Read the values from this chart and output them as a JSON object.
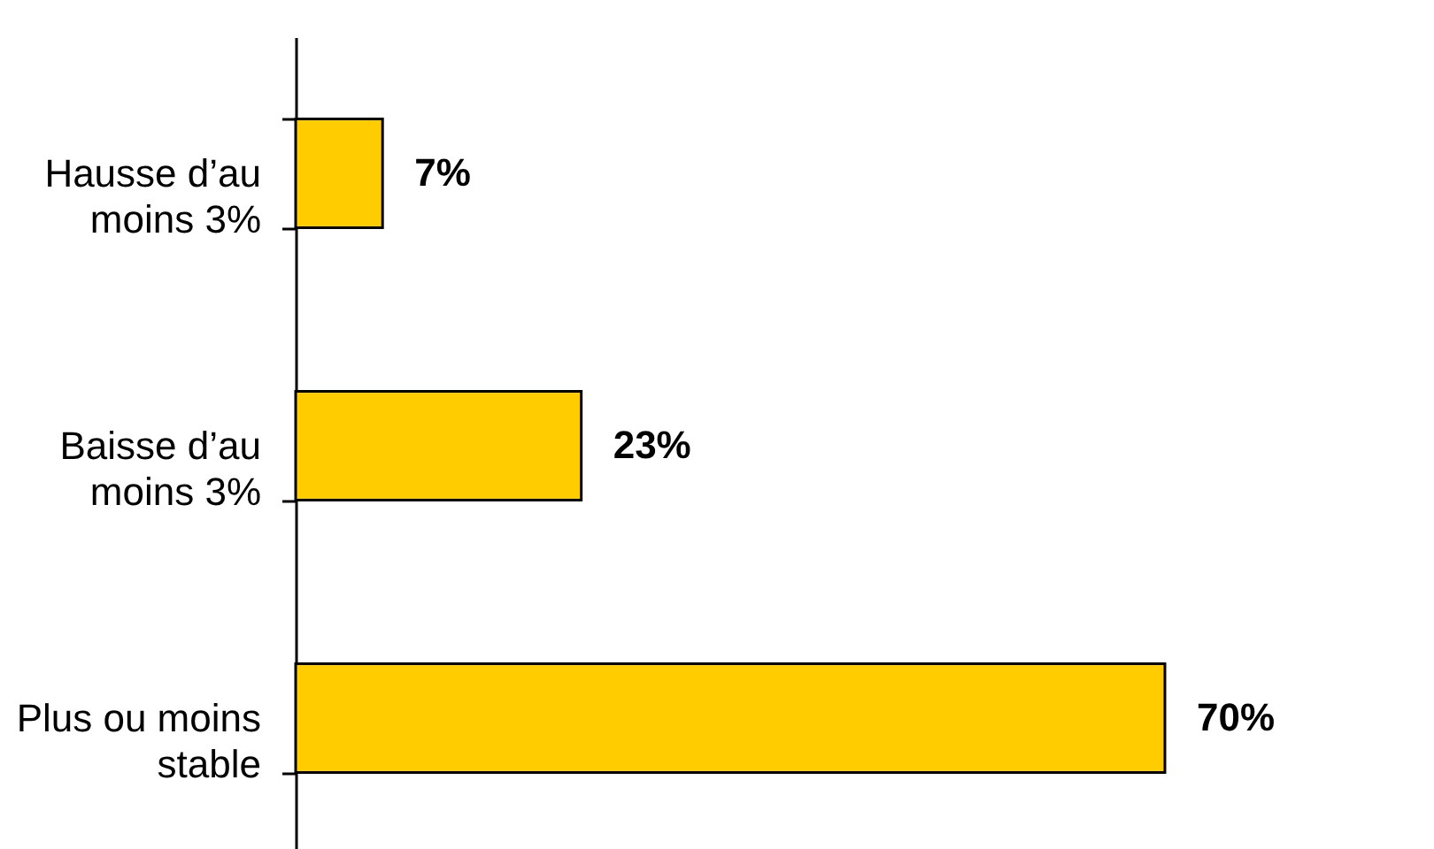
{
  "chart_data": {
    "type": "bar",
    "orientation": "horizontal",
    "categories": [
      "Hausse d’au moins 3%",
      "Baisse d’au moins 3%",
      "Plus ou moins stable"
    ],
    "values": [
      7,
      23,
      70
    ],
    "color": "#ffcc00",
    "value_labels": [
      "7%",
      "23%",
      "70%"
    ]
  }
}
